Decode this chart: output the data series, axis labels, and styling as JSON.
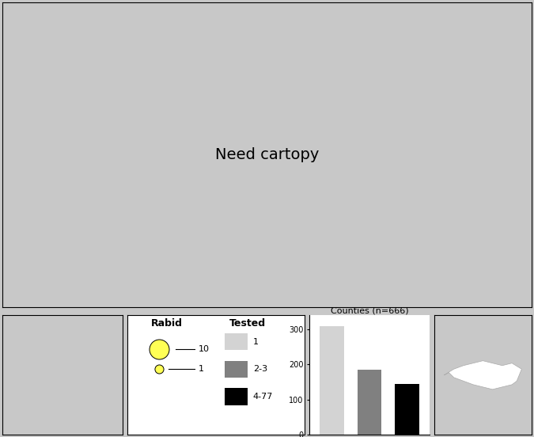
{
  "background_color": "#c8c8c8",
  "map_bg": "#ffffff",
  "county_colors": {
    "1": "#d3d3d3",
    "2-3": "#808080",
    "4-77": "#000000"
  },
  "circle_color": "#ffff55",
  "circle_edge": "#000000",
  "bar_colors": [
    "#d3d3d3",
    "#808080",
    "#000000"
  ],
  "bar_values": [
    310,
    185,
    145
  ],
  "legend_title_rabid": "Rabid",
  "legend_title_tested": "Tested",
  "counties_label": "Counties (n=666)",
  "panel_bg": "#ffffff"
}
